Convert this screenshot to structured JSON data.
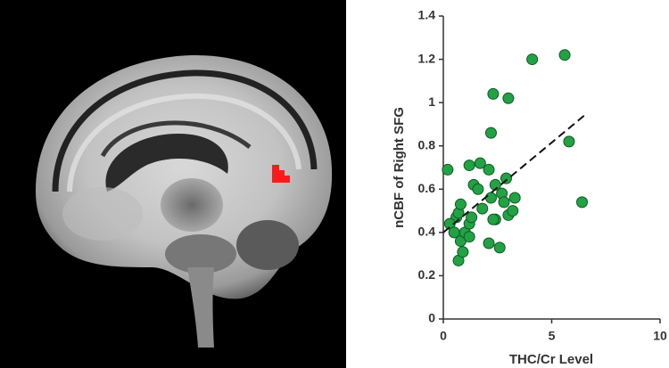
{
  "chart_data": {
    "type": "scatter",
    "x_label": "THC/Cr Level",
    "y_label": "nCBF of Right SFG",
    "xlim": [
      0,
      10
    ],
    "xticks": [
      0,
      5,
      10
    ],
    "ylim": [
      0,
      1.4
    ],
    "yticks": [
      0,
      0.2,
      0.4,
      0.6,
      0.8,
      1,
      1.2,
      1.4
    ],
    "grid": false,
    "color": "#22a245",
    "x": [
      0.2,
      0.6,
      0.7,
      0.8,
      0.9,
      0.3,
      0.5,
      0.7,
      0.8,
      1.0,
      1.2,
      1.2,
      1.3,
      1.2,
      1.4,
      1.6,
      1.7,
      2.1,
      2.2,
      2.3,
      3.0,
      1.8,
      2.1,
      2.2,
      2.4,
      2.6,
      2.3,
      2.7,
      2.9,
      3.0,
      3.3,
      3.2,
      4.1,
      5.6,
      5.8,
      6.4,
      2.4,
      2.8
    ],
    "values": [
      0.69,
      0.47,
      0.27,
      0.36,
      0.31,
      0.44,
      0.4,
      0.49,
      0.53,
      0.4,
      0.38,
      0.44,
      0.47,
      0.71,
      0.62,
      0.6,
      0.72,
      0.69,
      0.86,
      1.04,
      1.02,
      0.51,
      0.35,
      0.56,
      0.46,
      0.33,
      0.46,
      0.58,
      0.65,
      0.48,
      0.56,
      0.5,
      1.2,
      1.22,
      0.82,
      0.54,
      0.62,
      0.54
    ],
    "trend": {
      "x": [
        0,
        6.5
      ],
      "values": [
        0.4,
        0.94
      ],
      "color": "#111111"
    }
  }
}
